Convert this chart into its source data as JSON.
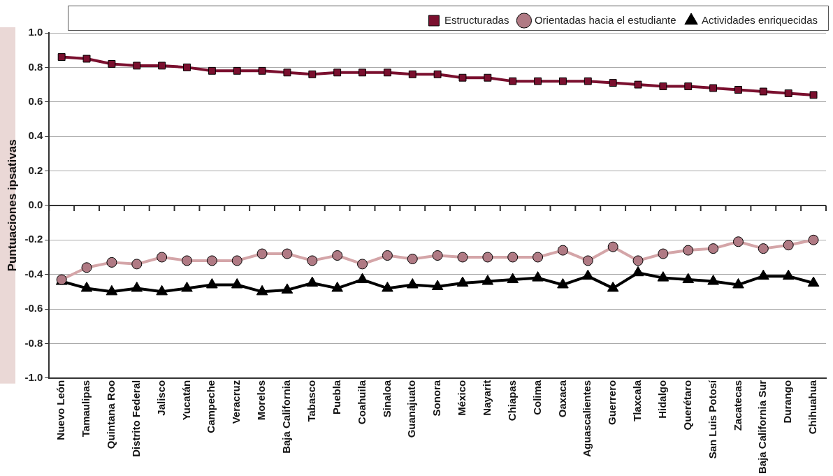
{
  "chart_data": {
    "type": "line",
    "ylabel": "Puntuaciones ipsativas",
    "categories": [
      "Nuevo León",
      "Tamaulipas",
      "Quintana Roo",
      "Distrito Federal",
      "Jalisco",
      "Yucatán",
      "Campeche",
      "Veracruz",
      "Morelos",
      "Baja California",
      "Tabasco",
      "Puebla",
      "Coahuila",
      "Sinaloa",
      "Guanajuato",
      "Sonora",
      "México",
      "Nayarit",
      "Chiapas",
      "Colima",
      "Oaxaca",
      "Aguascalientes",
      "Guerrero",
      "Tlaxcala",
      "Hidalgo",
      "Querétaro",
      "San Luis Potosí",
      "Zacatecas",
      "Baja California Sur",
      "Durango",
      "Chihuahua"
    ],
    "series": [
      {
        "name": "Estructuradas",
        "color": "#7a0f2e",
        "marker": "square",
        "values": [
          0.86,
          0.85,
          0.82,
          0.81,
          0.81,
          0.8,
          0.78,
          0.78,
          0.78,
          0.77,
          0.76,
          0.77,
          0.77,
          0.77,
          0.76,
          0.76,
          0.74,
          0.74,
          0.72,
          0.72,
          0.72,
          0.72,
          0.71,
          0.7,
          0.69,
          0.69,
          0.68,
          0.67,
          0.66,
          0.65,
          0.64
        ]
      },
      {
        "name": "Orientadas hacia el estudiante",
        "color": "#d4a5a8",
        "marker": "circle",
        "values": [
          -0.43,
          -0.36,
          -0.33,
          -0.34,
          -0.3,
          -0.32,
          -0.32,
          -0.32,
          -0.28,
          -0.28,
          -0.32,
          -0.29,
          -0.34,
          -0.29,
          -0.31,
          -0.29,
          -0.3,
          -0.3,
          -0.3,
          -0.3,
          -0.26,
          -0.32,
          -0.24,
          -0.32,
          -0.28,
          -0.26,
          -0.25,
          -0.21,
          -0.25,
          -0.23,
          -0.2
        ]
      },
      {
        "name": "Actividades enriquecidas",
        "color": "#000000",
        "marker": "triangle",
        "values": [
          -0.44,
          -0.48,
          -0.5,
          -0.48,
          -0.5,
          -0.48,
          -0.46,
          -0.46,
          -0.5,
          -0.49,
          -0.45,
          -0.48,
          -0.43,
          -0.48,
          -0.46,
          -0.47,
          -0.45,
          -0.44,
          -0.43,
          -0.42,
          -0.46,
          -0.41,
          -0.48,
          -0.39,
          -0.42,
          -0.43,
          -0.44,
          -0.46,
          -0.41,
          -0.41,
          -0.45
        ]
      }
    ],
    "ylim": [
      -1.0,
      1.0
    ],
    "yticks": [
      {
        "value": -1.0,
        "label": "-1.0"
      },
      {
        "value": -0.8,
        "label": "-0.8"
      },
      {
        "value": -0.6,
        "label": "-0.6"
      },
      {
        "value": -0.4,
        "label": "-0.4"
      },
      {
        "value": -0.2,
        "label": "-0.2"
      },
      {
        "value": 0,
        "label": "0.0"
      },
      {
        "value": 0.2,
        "label": "0.2"
      },
      {
        "value": 0.4,
        "label": "0.4"
      },
      {
        "value": 0.6,
        "label": "0.6"
      },
      {
        "value": 0.8,
        "label": "0.8"
      },
      {
        "value": 1.0,
        "label": "1.0"
      }
    ],
    "ref_lines": [
      {
        "axis": "y",
        "value": 0,
        "color": "#333333"
      }
    ],
    "grid": "y",
    "legend": "top",
    "line_style": "solid"
  }
}
